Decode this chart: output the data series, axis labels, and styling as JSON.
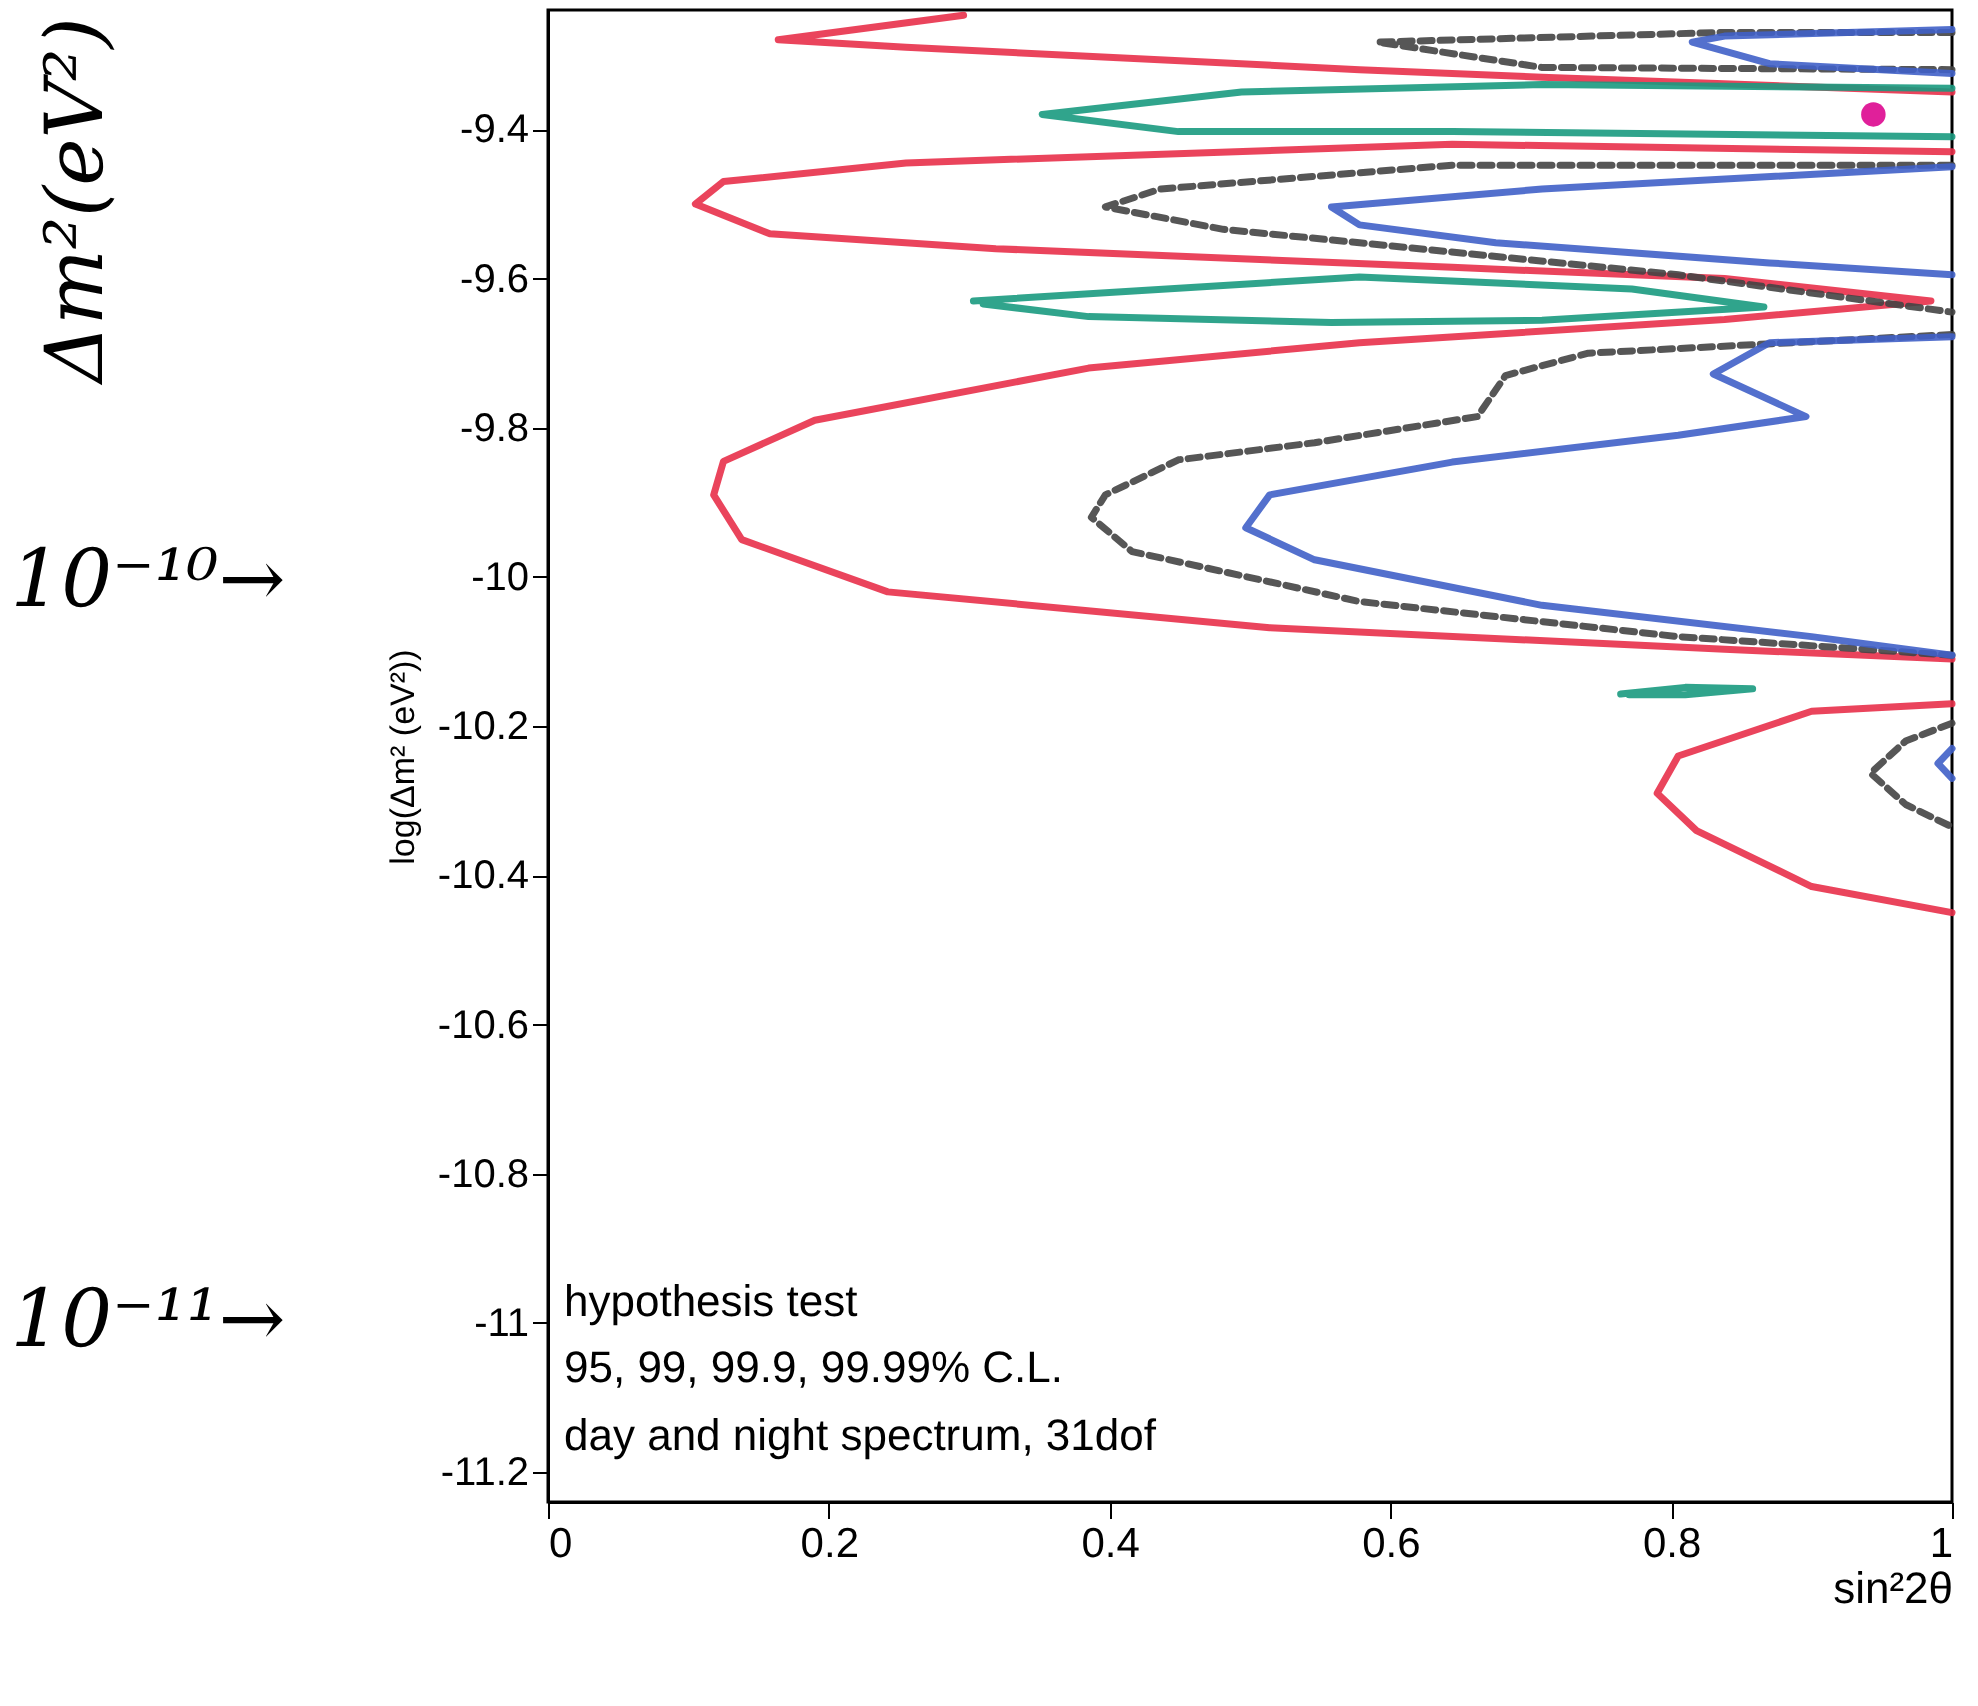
{
  "chart_data": {
    "type": "line",
    "xlabel": "sin²2θ",
    "ylabel": "log(Δm² (eV²))",
    "xlim": [
      0,
      1
    ],
    "ylim": [
      -11.24,
      -9.24
    ],
    "xticks": [
      0,
      0.2,
      0.4,
      0.6,
      0.8,
      1
    ],
    "yticks": [
      -11.2,
      -11,
      -10.8,
      -10.6,
      -10.4,
      -10.2,
      -10,
      -9.8,
      -9.6,
      -9.4
    ],
    "grid": false,
    "annotations": [
      "Δm²(eV²)",
      "10⁻¹⁰→",
      "10⁻¹¹→",
      "hypothesis test",
      "95, 99, 99.9, 99.99% C.L.",
      "day and night spectrum, 31dof"
    ],
    "series": [
      {
        "color": "#e8304a",
        "x": [
          0.296,
          0.164,
          0.255,
          0.578,
          0.708,
          1.0
        ],
        "values": [
          -9.247,
          -9.28,
          -9.29,
          -9.32,
          -9.33,
          -9.35
        ]
      },
      {
        "color": "#e8304a",
        "x": [
          1.0,
          0.644,
          0.255,
          0.125,
          0.105,
          0.158,
          0.319,
          0.644,
          0.838,
          0.985,
          0.838,
          0.578,
          0.385,
          0.19,
          0.125,
          0.118,
          0.138,
          0.242,
          0.514,
          0.838,
          1.0
        ],
        "values": [
          -9.43,
          -9.42,
          -9.445,
          -9.47,
          -9.5,
          -9.54,
          -9.56,
          -9.585,
          -9.6,
          -9.63,
          -9.655,
          -9.686,
          -9.72,
          -9.79,
          -9.845,
          -9.89,
          -9.95,
          -10.02,
          -10.068,
          -10.097,
          -10.11
        ]
      },
      {
        "color": "#e8304a",
        "x": [
          1.0,
          0.9,
          0.805,
          0.79,
          0.818,
          0.9,
          1.0
        ],
        "values": [
          -10.17,
          -10.18,
          -10.24,
          -10.29,
          -10.34,
          -10.415,
          -10.45
        ]
      },
      {
        "color": "#444444",
        "line_style": "dashed",
        "x": [
          1.0,
          0.838,
          0.591,
          0.708,
          1.0
        ],
        "values": [
          -9.27,
          -9.27,
          -9.283,
          -9.317,
          -9.32
        ]
      },
      {
        "color": "#444444",
        "line_style": "dashed",
        "x": [
          1.0,
          0.644,
          0.436,
          0.397,
          0.481,
          0.578,
          0.805,
          1.0
        ],
        "values": [
          -9.448,
          -9.448,
          -9.48,
          -9.504,
          -9.534,
          -9.552,
          -9.595,
          -9.645
        ]
      },
      {
        "color": "#444444",
        "line_style": "dashed",
        "x": [
          1.0,
          0.741,
          0.682,
          0.662,
          0.546,
          0.449,
          0.397,
          0.387,
          0.416,
          0.578,
          0.805,
          1.0
        ],
        "values": [
          -9.675,
          -9.7,
          -9.73,
          -9.785,
          -9.82,
          -9.843,
          -9.89,
          -9.92,
          -9.966,
          -10.033,
          -10.08,
          -10.105
        ]
      },
      {
        "color": "#444444",
        "line_style": "dashed",
        "x": [
          1.0,
          0.967,
          0.942,
          0.967,
          1.0
        ],
        "values": [
          -10.196,
          -10.22,
          -10.263,
          -10.305,
          -10.335
        ]
      },
      {
        "color": "#4060c8",
        "x": [
          1.0,
          0.838,
          0.815,
          0.87,
          1.0
        ],
        "values": [
          -9.266,
          -9.275,
          -9.283,
          -9.312,
          -9.325
        ]
      },
      {
        "color": "#4060c8",
        "x": [
          1.0,
          0.708,
          0.558,
          0.578,
          0.675,
          0.87,
          1.0
        ],
        "values": [
          -9.45,
          -9.48,
          -9.504,
          -9.528,
          -9.552,
          -9.579,
          -9.595
        ]
      },
      {
        "color": "#4060c8",
        "x": [
          1.0,
          0.87,
          0.83,
          0.896,
          0.805,
          0.644,
          0.514,
          0.497,
          0.546,
          0.708,
          0.9,
          1.0
        ],
        "values": [
          -9.678,
          -9.686,
          -9.728,
          -9.785,
          -9.81,
          -9.846,
          -9.89,
          -9.934,
          -9.977,
          -10.038,
          -10.08,
          -10.105
        ]
      },
      {
        "color": "#4060c8",
        "x": [
          1.0,
          0.99,
          1.0
        ],
        "values": [
          -10.23,
          -10.25,
          -10.27
        ]
      },
      {
        "color": "#1a9a80",
        "x": [
          1.0,
          0.708,
          0.494,
          0.352,
          0.449,
          0.644,
          1.0
        ],
        "values": [
          -9.345,
          -9.34,
          -9.35,
          -9.38,
          -9.403,
          -9.403,
          -9.41
        ]
      },
      {
        "color": "#1a9a80",
        "x": [
          0.303,
          0.578,
          0.772,
          0.866,
          0.708,
          0.558,
          0.385,
          0.31
        ],
        "values": [
          -9.63,
          -9.598,
          -9.614,
          -9.638,
          -9.656,
          -9.659,
          -9.651,
          -9.634
        ]
      },
      {
        "color": "#1a9a80",
        "x": [
          0.764,
          0.81,
          0.858,
          0.81,
          0.77
        ],
        "values": [
          -10.157,
          -10.148,
          -10.15,
          -10.158,
          -10.158
        ]
      },
      {
        "type": "scatter",
        "marker": "circle",
        "color": "#e0209a",
        "x": [
          0.944
        ],
        "values": [
          -9.38
        ]
      }
    ]
  }
}
